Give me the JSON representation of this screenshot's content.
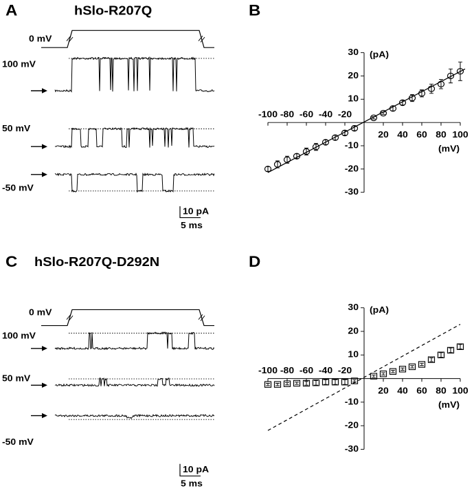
{
  "panels": [
    {
      "letter": "A",
      "title": "hSlo-R207Q",
      "labels": [
        "0 mV",
        "100 mV",
        "50 mV",
        "-50 mV"
      ],
      "scale_current": "10 pA",
      "scale_time": "5 ms"
    },
    {
      "letter": "C",
      "title": "hSlo-R207Q-D292N",
      "labels": [
        "0 mV",
        "100 mV",
        "50 mV",
        "-50 mV"
      ],
      "scale_current": "10 pA",
      "scale_time": "5 ms"
    }
  ],
  "chart_data": [
    {
      "type": "scatter",
      "letter": "B",
      "marker": "circle",
      "x": [
        -100,
        -90,
        -80,
        -70,
        -60,
        -50,
        -40,
        -30,
        -20,
        -10,
        10,
        20,
        30,
        40,
        50,
        60,
        70,
        80,
        90,
        100
      ],
      "values": [
        -20,
        -18,
        -16,
        -14.5,
        -12.5,
        -10.5,
        -8.5,
        -6.5,
        -4.5,
        -2.5,
        2,
        4,
        6,
        8.5,
        10.5,
        12.5,
        14.5,
        16.5,
        20,
        22
      ],
      "errors": [
        1,
        1.5,
        1.5,
        1,
        1.5,
        1.5,
        1,
        1,
        1,
        1,
        0.5,
        0.5,
        1,
        1,
        1.5,
        1.5,
        2,
        2,
        3,
        4
      ],
      "line": {
        "x": [
          -100,
          105
        ],
        "values": [
          -21.5,
          23
        ],
        "dashed": false
      },
      "xlim": [
        -100,
        100
      ],
      "ylim": [
        -30,
        30
      ],
      "xticks": [
        -100,
        -80,
        -60,
        -40,
        -20,
        20,
        40,
        60,
        80,
        100
      ],
      "yticks": [
        30,
        20,
        10,
        -10,
        -20,
        -30
      ],
      "y_unit": "(pA)",
      "x_unit": "(mV)"
    },
    {
      "type": "scatter",
      "letter": "D",
      "marker": "square",
      "x": [
        -100,
        -90,
        -80,
        -70,
        -60,
        -50,
        -40,
        -30,
        -20,
        -10,
        10,
        20,
        30,
        40,
        50,
        60,
        70,
        80,
        90,
        100
      ],
      "values": [
        -2.5,
        -2.5,
        -2.2,
        -2,
        -2,
        -1.8,
        -1.5,
        -1.5,
        -1.5,
        -1,
        1,
        2,
        3,
        4,
        5,
        6,
        8,
        10,
        12,
        13.5
      ],
      "errors": [
        0.5,
        0.5,
        0.5,
        0.5,
        0.8,
        1,
        1,
        1,
        1,
        0.5,
        0.5,
        0.5,
        0.5,
        0.5,
        0.5,
        0.5,
        0.8,
        1,
        1,
        1
      ],
      "line": {
        "x": [
          -100,
          100
        ],
        "values": [
          -22,
          23
        ],
        "dashed": true
      },
      "xlim": [
        -100,
        100
      ],
      "ylim": [
        -30,
        30
      ],
      "xticks": [
        -100,
        -80,
        -60,
        -40,
        -20,
        20,
        40,
        60,
        80,
        100
      ],
      "yticks": [
        30,
        20,
        10,
        -10,
        -20,
        -30
      ],
      "y_unit": "(pA)",
      "x_unit": "(mV)"
    }
  ]
}
